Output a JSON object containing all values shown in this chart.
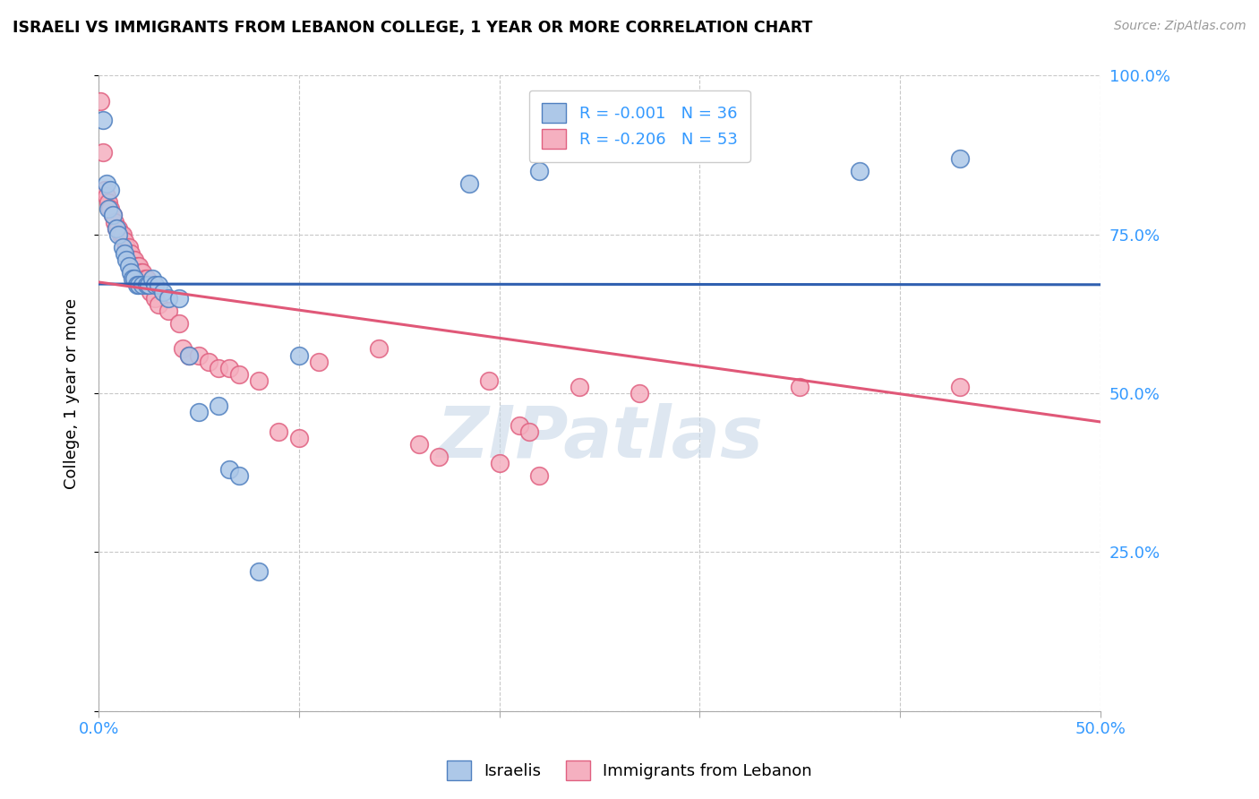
{
  "title": "ISRAELI VS IMMIGRANTS FROM LEBANON COLLEGE, 1 YEAR OR MORE CORRELATION CHART",
  "source": "Source: ZipAtlas.com",
  "ylabel": "College, 1 year or more",
  "xlim": [
    0.0,
    0.5
  ],
  "ylim": [
    0.0,
    1.0
  ],
  "legend_r_blue": "-0.001",
  "legend_n_blue": "36",
  "legend_r_pink": "-0.206",
  "legend_n_pink": "53",
  "blue_fill": "#adc8e8",
  "pink_fill": "#f5b0c0",
  "blue_edge": "#5080c0",
  "pink_edge": "#e06080",
  "line_blue_color": "#3060b0",
  "line_pink_color": "#e05878",
  "watermark": "ZIPatlas",
  "watermark_color": "#c8d8e8",
  "grid_color": "#c8c8c8",
  "tick_label_color": "#3399ff",
  "blue_line_intercept": 0.672,
  "blue_line_slope": -0.002,
  "pink_line_intercept": 0.675,
  "pink_line_slope": -0.44,
  "blue_points": [
    [
      0.002,
      0.93
    ],
    [
      0.004,
      0.83
    ],
    [
      0.005,
      0.79
    ],
    [
      0.006,
      0.82
    ],
    [
      0.007,
      0.78
    ],
    [
      0.009,
      0.76
    ],
    [
      0.01,
      0.75
    ],
    [
      0.012,
      0.73
    ],
    [
      0.013,
      0.72
    ],
    [
      0.014,
      0.71
    ],
    [
      0.015,
      0.7
    ],
    [
      0.016,
      0.69
    ],
    [
      0.017,
      0.68
    ],
    [
      0.018,
      0.68
    ],
    [
      0.019,
      0.67
    ],
    [
      0.02,
      0.67
    ],
    [
      0.022,
      0.67
    ],
    [
      0.024,
      0.67
    ],
    [
      0.025,
      0.67
    ],
    [
      0.027,
      0.68
    ],
    [
      0.028,
      0.67
    ],
    [
      0.03,
      0.67
    ],
    [
      0.032,
      0.66
    ],
    [
      0.035,
      0.65
    ],
    [
      0.04,
      0.65
    ],
    [
      0.045,
      0.56
    ],
    [
      0.05,
      0.47
    ],
    [
      0.06,
      0.48
    ],
    [
      0.065,
      0.38
    ],
    [
      0.07,
      0.37
    ],
    [
      0.08,
      0.22
    ],
    [
      0.1,
      0.56
    ],
    [
      0.185,
      0.83
    ],
    [
      0.22,
      0.85
    ],
    [
      0.38,
      0.85
    ],
    [
      0.43,
      0.87
    ]
  ],
  "pink_points": [
    [
      0.001,
      0.96
    ],
    [
      0.002,
      0.88
    ],
    [
      0.003,
      0.82
    ],
    [
      0.004,
      0.81
    ],
    [
      0.005,
      0.8
    ],
    [
      0.006,
      0.79
    ],
    [
      0.007,
      0.78
    ],
    [
      0.008,
      0.77
    ],
    [
      0.009,
      0.76
    ],
    [
      0.01,
      0.76
    ],
    [
      0.011,
      0.75
    ],
    [
      0.012,
      0.75
    ],
    [
      0.013,
      0.74
    ],
    [
      0.014,
      0.73
    ],
    [
      0.015,
      0.73
    ],
    [
      0.016,
      0.72
    ],
    [
      0.017,
      0.71
    ],
    [
      0.018,
      0.71
    ],
    [
      0.019,
      0.7
    ],
    [
      0.02,
      0.7
    ],
    [
      0.021,
      0.69
    ],
    [
      0.022,
      0.69
    ],
    [
      0.023,
      0.68
    ],
    [
      0.024,
      0.68
    ],
    [
      0.025,
      0.67
    ],
    [
      0.026,
      0.66
    ],
    [
      0.028,
      0.65
    ],
    [
      0.03,
      0.64
    ],
    [
      0.035,
      0.63
    ],
    [
      0.04,
      0.61
    ],
    [
      0.042,
      0.57
    ],
    [
      0.045,
      0.56
    ],
    [
      0.05,
      0.56
    ],
    [
      0.055,
      0.55
    ],
    [
      0.06,
      0.54
    ],
    [
      0.065,
      0.54
    ],
    [
      0.07,
      0.53
    ],
    [
      0.08,
      0.52
    ],
    [
      0.09,
      0.44
    ],
    [
      0.1,
      0.43
    ],
    [
      0.11,
      0.55
    ],
    [
      0.14,
      0.57
    ],
    [
      0.16,
      0.42
    ],
    [
      0.17,
      0.4
    ],
    [
      0.195,
      0.52
    ],
    [
      0.2,
      0.39
    ],
    [
      0.21,
      0.45
    ],
    [
      0.215,
      0.44
    ],
    [
      0.22,
      0.37
    ],
    [
      0.24,
      0.51
    ],
    [
      0.27,
      0.5
    ],
    [
      0.35,
      0.51
    ],
    [
      0.43,
      0.51
    ]
  ]
}
